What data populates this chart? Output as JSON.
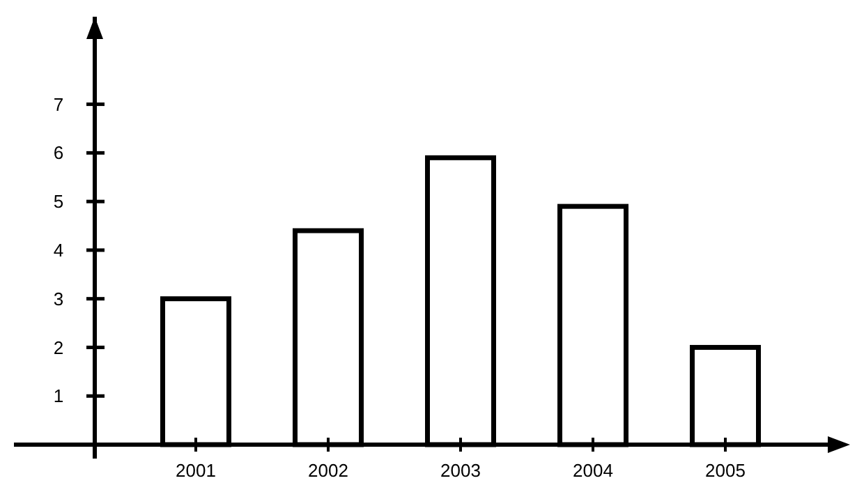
{
  "chart_data": {
    "type": "bar",
    "categories": [
      "2001",
      "2002",
      "2003",
      "2004",
      "2005"
    ],
    "values": [
      3,
      4.4,
      5.9,
      4.9,
      2
    ],
    "color": "#ffffff",
    "ylim": [
      0,
      8.8
    ],
    "yticks": [
      1,
      2,
      3,
      4,
      5,
      6,
      7
    ],
    "grid": false
  }
}
